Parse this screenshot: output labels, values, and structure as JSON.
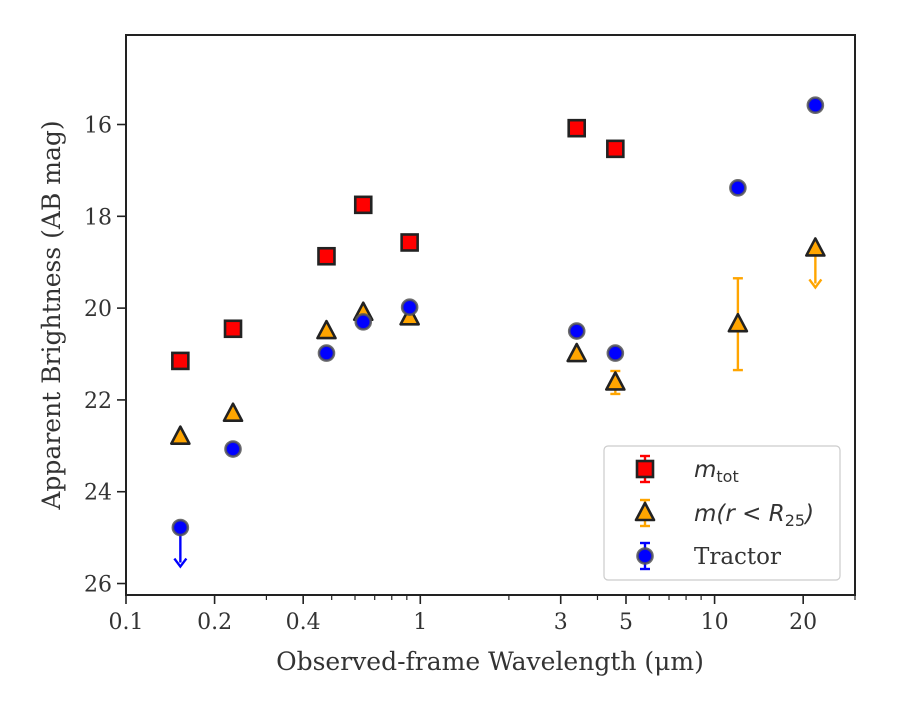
{
  "chart_data": {
    "type": "scatter",
    "title": "",
    "xlabel": "Observed-frame Wavelength (μm)",
    "ylabel": "Apparent Brightness (AB mag)",
    "xscale": "log",
    "xlim": [
      0.1,
      30
    ],
    "ylim": [
      26.25,
      14.05
    ],
    "y_inverted": true,
    "x_major_ticks": [
      {
        "value": 0.1,
        "label": "0.1"
      },
      {
        "value": 0.2,
        "label": "0.2"
      },
      {
        "value": 0.4,
        "label": "0.4"
      },
      {
        "value": 1,
        "label": "1"
      },
      {
        "value": 3,
        "label": "3"
      },
      {
        "value": 5,
        "label": "5"
      },
      {
        "value": 10,
        "label": "10"
      },
      {
        "value": 20,
        "label": "20"
      }
    ],
    "x_minor_ticks": [
      0.3,
      0.5,
      0.6,
      0.7,
      0.8,
      0.9,
      2,
      4,
      6,
      7,
      8,
      9,
      30
    ],
    "y_ticks": [
      16,
      18,
      20,
      22,
      24,
      26
    ],
    "grid": false,
    "legend_position": "lower-right",
    "series": [
      {
        "name": "m_tot",
        "legend_main": "m",
        "legend_sub": "tot",
        "marker": "square",
        "color": "#ff0000",
        "edge": "#222222",
        "points": [
          {
            "x": 0.153,
            "y": 21.15,
            "err": 0.05
          },
          {
            "x": 0.231,
            "y": 20.45,
            "err": 0.05
          },
          {
            "x": 0.48,
            "y": 18.87,
            "err": 0.05
          },
          {
            "x": 0.64,
            "y": 17.75,
            "err": 0.05
          },
          {
            "x": 0.92,
            "y": 18.57,
            "err": 0.05
          },
          {
            "x": 3.4,
            "y": 16.08,
            "err": 0.05
          },
          {
            "x": 4.6,
            "y": 16.53,
            "err": 0.05
          }
        ]
      },
      {
        "name": "m(r < R25)",
        "legend_main": "m(r < R",
        "legend_sub": "25",
        "legend_end": ")",
        "marker": "triangle",
        "color": "#ffa500",
        "edge": "#222222",
        "points": [
          {
            "x": 0.153,
            "y": 22.8,
            "err": 0.12
          },
          {
            "x": 0.231,
            "y": 22.3,
            "err": 0.08
          },
          {
            "x": 0.48,
            "y": 20.5,
            "err": 0.05
          },
          {
            "x": 0.64,
            "y": 20.1,
            "err": 0.05
          },
          {
            "x": 0.92,
            "y": 20.2,
            "err": 0.05
          },
          {
            "x": 3.4,
            "y": 21.0,
            "err": 0.05
          },
          {
            "x": 4.6,
            "y": 21.62,
            "err": 0.25
          },
          {
            "x": 12.0,
            "y": 20.35,
            "err": 1.0
          },
          {
            "x": 22.0,
            "y": 18.7,
            "upper_limit": true
          }
        ]
      },
      {
        "name": "Tractor",
        "legend_main": "Tractor",
        "marker": "circle",
        "color": "#0000ff",
        "edge": "#555555",
        "points": [
          {
            "x": 0.153,
            "y": 24.78,
            "upper_limit": true
          },
          {
            "x": 0.231,
            "y": 23.07,
            "err": 0.05
          },
          {
            "x": 0.48,
            "y": 20.98,
            "err": 0.05
          },
          {
            "x": 0.64,
            "y": 20.3,
            "err": 0.05
          },
          {
            "x": 0.92,
            "y": 19.98,
            "err": 0.05
          },
          {
            "x": 3.4,
            "y": 20.5,
            "err": 0.05
          },
          {
            "x": 4.6,
            "y": 20.98,
            "err": 0.05
          },
          {
            "x": 12.0,
            "y": 17.38,
            "err": 0.05
          },
          {
            "x": 22.0,
            "y": 15.58,
            "err": 0.05
          }
        ]
      }
    ]
  }
}
